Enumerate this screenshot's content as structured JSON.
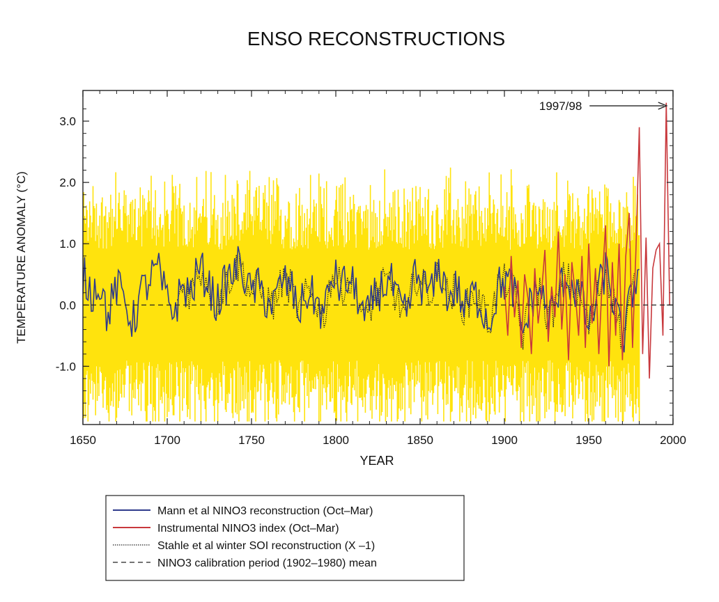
{
  "chart_data": {
    "type": "line",
    "title": "ENSO RECONSTRUCTIONS",
    "xlabel": "YEAR",
    "ylabel": "TEMPERATURE ANOMALY (°C)",
    "xlim": [
      1650,
      2000
    ],
    "ylim": [
      -1.95,
      3.5
    ],
    "x_ticks": [
      "1650",
      "1700",
      "1750",
      "1800",
      "1850",
      "1900",
      "1950",
      "2000"
    ],
    "y_ticks": [
      "3.0",
      "2.0",
      "1.0",
      "0.0",
      "-1.0"
    ],
    "baseline": 0.0,
    "annotation": {
      "text": "1997/98",
      "x_start": 1937,
      "x_end": 1997,
      "y": 3.25
    },
    "legend_placement": "bottom",
    "series": [
      {
        "name": "Mann et al NINO3 reconstruction (Oct–Mar)",
        "color": "#2e3a8c",
        "style": "solid",
        "x_start": 1650,
        "x_end": 1980,
        "values_sampled_every_5yr": [
          0.5,
          0.2,
          0.4,
          -0.2,
          0.3,
          0.1,
          -0.3,
          0.2,
          0.4,
          0.6,
          0.1,
          -0.1,
          0.3,
          0.2,
          0.6,
          0.4,
          0.0,
          0.3,
          0.5,
          0.7,
          0.2,
          0.3,
          0.1,
          0.0,
          0.4,
          0.3,
          -0.1,
          0.2,
          0.1,
          -0.2,
          0.5,
          0.3,
          0.4,
          0.2,
          -0.3,
          0.1,
          0.3,
          0.4,
          0.0,
          -0.2,
          0.5,
          0.3,
          0.2,
          0.6,
          0.1,
          0.3,
          -0.1,
          0.2,
          0.0,
          -0.3,
          0.3,
          0.4,
          0.2,
          -0.5,
          0.1,
          0.3,
          -0.2,
          0.0,
          0.5,
          0.3,
          0.1,
          -0.4,
          0.2,
          0.6,
          0.0,
          -0.6,
          0.1,
          0.7
        ]
      },
      {
        "name": "Instrumental NINO3 index  (Oct–Mar)",
        "color": "#c8383c",
        "style": "solid",
        "x_start": 1900,
        "x_end": 1998,
        "values_sampled_every_2yr": [
          0.3,
          -0.5,
          0.8,
          -0.2,
          0.4,
          -0.7,
          0.5,
          0.1,
          -0.8,
          0.6,
          -0.3,
          0.2,
          0.9,
          -0.6,
          0.3,
          -0.2,
          1.2,
          -0.4,
          0.5,
          -0.9,
          0.7,
          0.2,
          -0.5,
          0.8,
          -0.7,
          1.0,
          -0.3,
          0.6,
          -0.8,
          0.4,
          1.3,
          -1.0,
          0.7,
          -0.5,
          1.0,
          -0.9,
          0.8,
          1.5,
          -0.7,
          0.9,
          2.9,
          -0.8,
          1.1,
          -1.2,
          0.6,
          0.9,
          1.0,
          -0.5,
          3.3,
          0.0
        ]
      },
      {
        "name": "Stahle et al winter SOI reconstruction (X –1)",
        "color": "#222222",
        "style": "dotted",
        "x_start": 1706,
        "x_end": 1977
      },
      {
        "name": "NINO3 calibration period (1902–1980) mean",
        "color": "#222222",
        "style": "dashed",
        "value": 0.0
      },
      {
        "color": "#ffe200",
        "style": "band",
        "x_start": 1650,
        "x_end": 1980,
        "range": [
          -1.9,
          2.3
        ]
      }
    ]
  }
}
